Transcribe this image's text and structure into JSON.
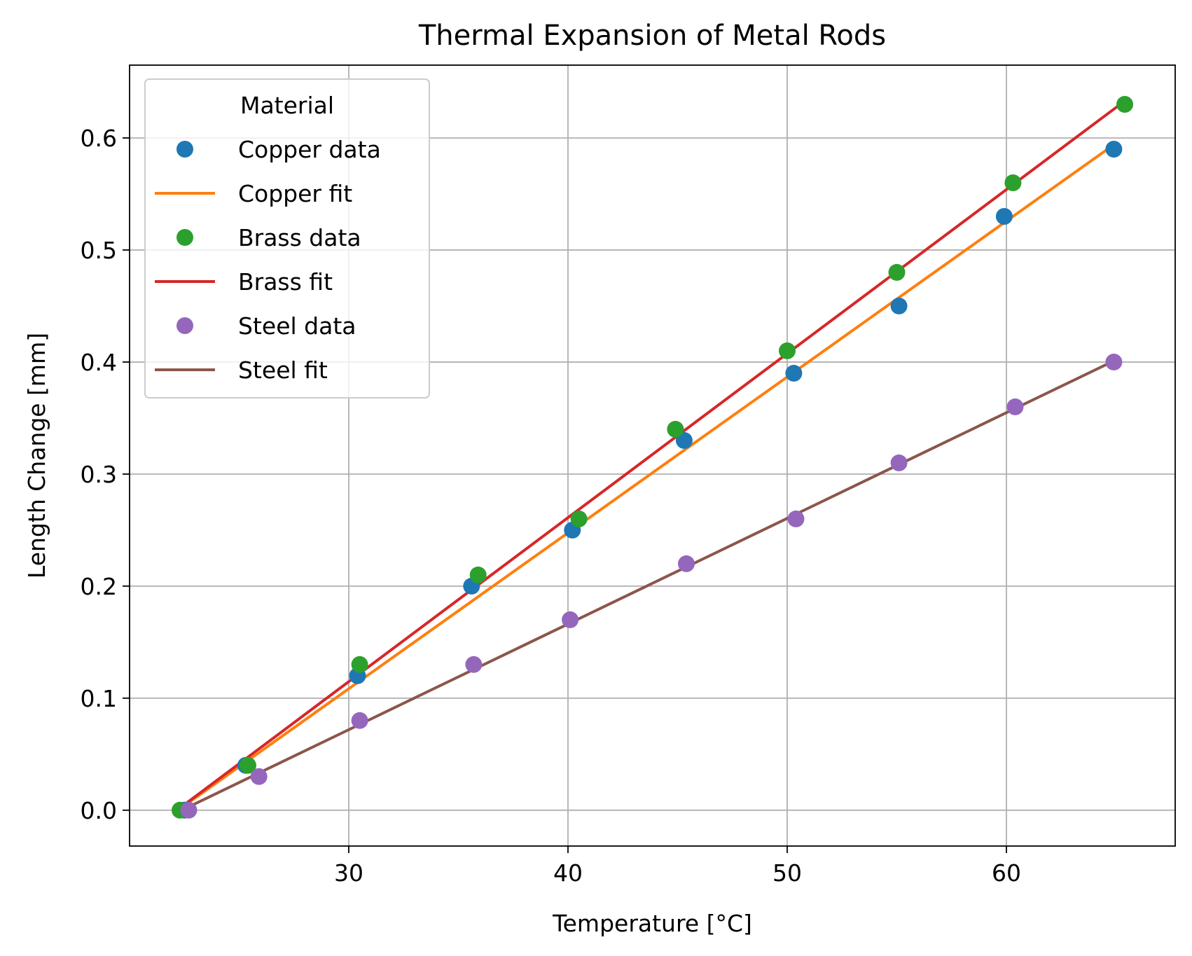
{
  "chart_data": {
    "type": "scatter",
    "title": "Thermal Expansion of Metal Rods",
    "xlabel": "Temperature [°C]",
    "ylabel": "Length Change [mm]",
    "xlim": [
      20.0,
      67.7
    ],
    "ylim": [
      -0.032,
      0.665
    ],
    "xticks": [
      30,
      40,
      50,
      60
    ],
    "xtick_labels": [
      "30",
      "40",
      "50",
      "60"
    ],
    "yticks": [
      0.0,
      0.1,
      0.2,
      0.3,
      0.4,
      0.5,
      0.6
    ],
    "ytick_labels": [
      "0.0",
      "0.1",
      "0.2",
      "0.3",
      "0.4",
      "0.5",
      "0.6"
    ],
    "grid": true,
    "legend": {
      "title": "Material",
      "placement": "top-left",
      "entries": [
        {
          "label": "Copper data",
          "kind": "marker",
          "color": "#1f77b4"
        },
        {
          "label": "Copper fit",
          "kind": "line",
          "color": "#ff7f0e"
        },
        {
          "label": "Brass data",
          "kind": "marker",
          "color": "#2ca02c"
        },
        {
          "label": "Brass fit",
          "kind": "line",
          "color": "#d62728"
        },
        {
          "label": "Steel data",
          "kind": "marker",
          "color": "#9467bd"
        },
        {
          "label": "Steel fit",
          "kind": "line",
          "color": "#8c564b"
        }
      ]
    },
    "series": [
      {
        "name": "Copper data",
        "kind": "scatter",
        "color": "#1f77b4",
        "points": [
          [
            22.5,
            0.0
          ],
          [
            25.3,
            0.04
          ],
          [
            30.4,
            0.12
          ],
          [
            35.6,
            0.2
          ],
          [
            40.2,
            0.25
          ],
          [
            45.3,
            0.33
          ],
          [
            50.3,
            0.39
          ],
          [
            55.1,
            0.45
          ],
          [
            59.9,
            0.53
          ],
          [
            64.9,
            0.59
          ]
        ]
      },
      {
        "name": "Copper fit",
        "kind": "line",
        "color": "#ff7f0e",
        "points": [
          [
            22.5,
            0.004
          ],
          [
            64.9,
            0.594
          ]
        ]
      },
      {
        "name": "Brass data",
        "kind": "scatter",
        "color": "#2ca02c",
        "points": [
          [
            22.3,
            0.0
          ],
          [
            25.4,
            0.04
          ],
          [
            30.5,
            0.13
          ],
          [
            35.9,
            0.21
          ],
          [
            40.5,
            0.26
          ],
          [
            44.9,
            0.34
          ],
          [
            50.0,
            0.41
          ],
          [
            55.0,
            0.48
          ],
          [
            60.3,
            0.56
          ],
          [
            65.4,
            0.63
          ]
        ]
      },
      {
        "name": "Brass fit",
        "kind": "line",
        "color": "#d62728",
        "points": [
          [
            22.3,
            0.002
          ],
          [
            65.4,
            0.633
          ]
        ]
      },
      {
        "name": "Steel data",
        "kind": "scatter",
        "color": "#9467bd",
        "points": [
          [
            22.7,
            0.0
          ],
          [
            25.9,
            0.03
          ],
          [
            30.5,
            0.08
          ],
          [
            35.7,
            0.13
          ],
          [
            40.1,
            0.17
          ],
          [
            45.4,
            0.22
          ],
          [
            50.4,
            0.26
          ],
          [
            55.1,
            0.31
          ],
          [
            60.4,
            0.36
          ],
          [
            64.9,
            0.4
          ]
        ]
      },
      {
        "name": "Steel fit",
        "kind": "line",
        "color": "#8c564b",
        "points": [
          [
            22.7,
            0.003
          ],
          [
            64.9,
            0.401
          ]
        ]
      }
    ]
  }
}
